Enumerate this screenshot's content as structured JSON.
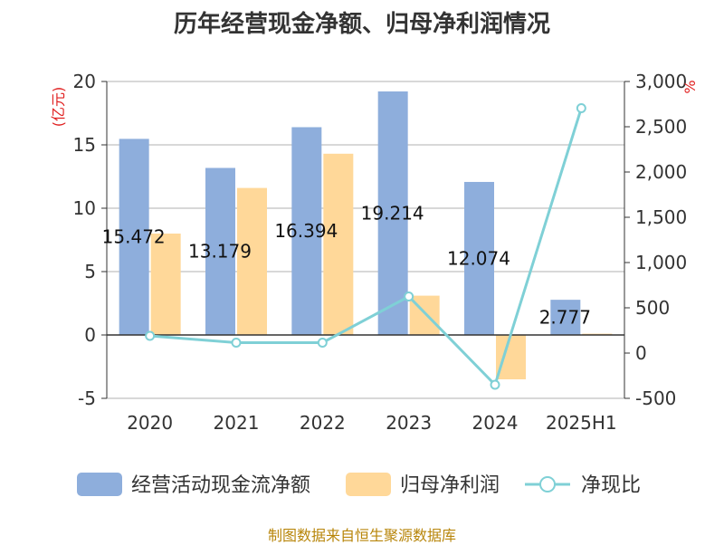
{
  "title": "历年经营现金净额、归母净利润情况",
  "footer": "制图数据来自恒生聚源数据库",
  "chart_data": {
    "type": "bar",
    "categories": [
      "2020",
      "2021",
      "2022",
      "2023",
      "2024",
      "2025H1"
    ],
    "y_left": {
      "unit": "(亿元)",
      "ylim": [
        -5,
        20
      ],
      "ticks": [
        -5,
        0,
        5,
        10,
        15,
        20
      ]
    },
    "y_right": {
      "unit": "%",
      "ylim": [
        -500,
        3000
      ],
      "ticks": [
        -500,
        0,
        500,
        1000,
        1500,
        2000,
        2500,
        3000
      ]
    },
    "series": [
      {
        "name": "经营活动现金流净额",
        "kind": "bar",
        "axis": "left",
        "color": "#8eaedc",
        "values": [
          15.472,
          13.179,
          16.394,
          19.214,
          12.074,
          2.777
        ],
        "labels": [
          "15.472",
          "13.179",
          "16.394",
          "19.214",
          "12.074",
          "2.777"
        ]
      },
      {
        "name": "归母净利润",
        "kind": "bar",
        "axis": "left",
        "color": "#ffd899",
        "values": [
          8.0,
          11.6,
          14.3,
          3.1,
          -3.5,
          0.1
        ]
      },
      {
        "name": "净现比",
        "kind": "line",
        "axis": "right",
        "color": "#7fd0d6",
        "values": [
          190,
          115,
          115,
          625,
          -350,
          2705
        ]
      }
    ],
    "grid": true,
    "legend_position": "bottom"
  }
}
